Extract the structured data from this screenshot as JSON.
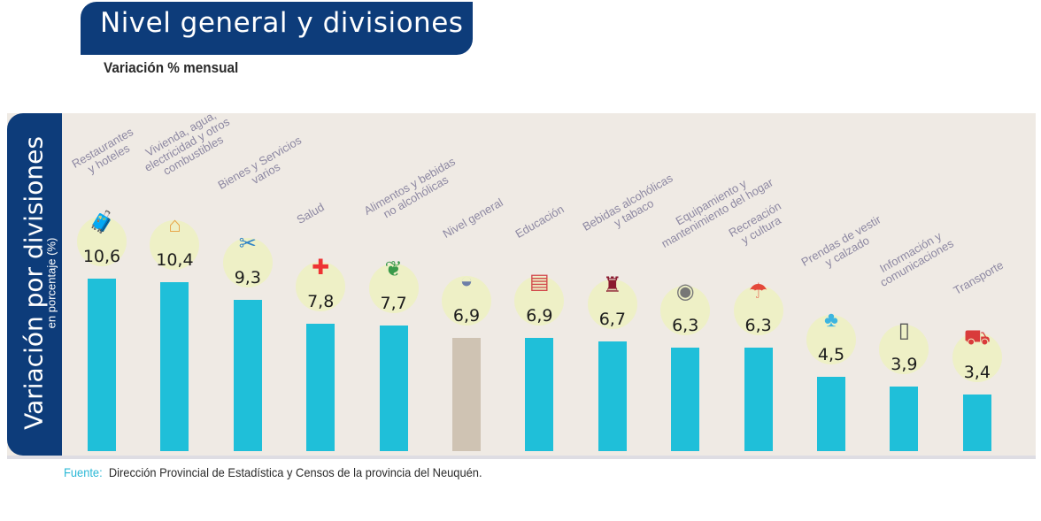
{
  "header": {
    "title": "Nivel general y divisiones",
    "subtitle": "Variación % mensual"
  },
  "source": {
    "label": "Fuente:",
    "text": "Dirección Provincial de Estadística y Censos de la provincia del Neuquén."
  },
  "chart_data": {
    "type": "bar",
    "title": "Nivel general y divisiones",
    "subtitle": "Variación % mensual",
    "ylabel": "Variación por divisiones",
    "ylabel_sub": "en porcentaje (%)",
    "categories": [
      "Restaurantes\ny hoteles",
      "Vivienda, agua,\nelectricidad y otros\ncombustibles",
      "Bienes y Servicios\nvarios",
      "Salud",
      "Alimentos y bebidas\nno alcohólicas",
      "Nivel general",
      "Educación",
      "Bebidas alcohólicas\ny tabaco",
      "Equipamiento y\nmantenimiento del hogar",
      "Recreación\ny cultura",
      "Prendas de vestir\ny calzado",
      "Información y\ncomunicaciones",
      "Transporte"
    ],
    "values": [
      10.6,
      10.4,
      9.3,
      7.8,
      7.7,
      6.9,
      6.9,
      6.7,
      6.3,
      6.3,
      4.5,
      3.9,
      3.4
    ],
    "value_labels": [
      "10,6",
      "10,4",
      "9,3",
      "7,8",
      "7,7",
      "6,9",
      "6,9",
      "6,7",
      "6,3",
      "6,3",
      "4,5",
      "3,9",
      "3,4"
    ],
    "icons": [
      "luggage-icon",
      "house-icon",
      "scissors-card-icon",
      "health-shield-icon",
      "food-icon",
      "basket-icon",
      "books-icon",
      "wine-icon",
      "washing-machine-icon",
      "beach-icon",
      "clothes-icon",
      "phone-icon",
      "car-icon"
    ],
    "colors": {
      "division": "#1fbfd9",
      "general": "#cfc3b3"
    },
    "ylim": [
      0,
      11
    ],
    "grid": false
  }
}
